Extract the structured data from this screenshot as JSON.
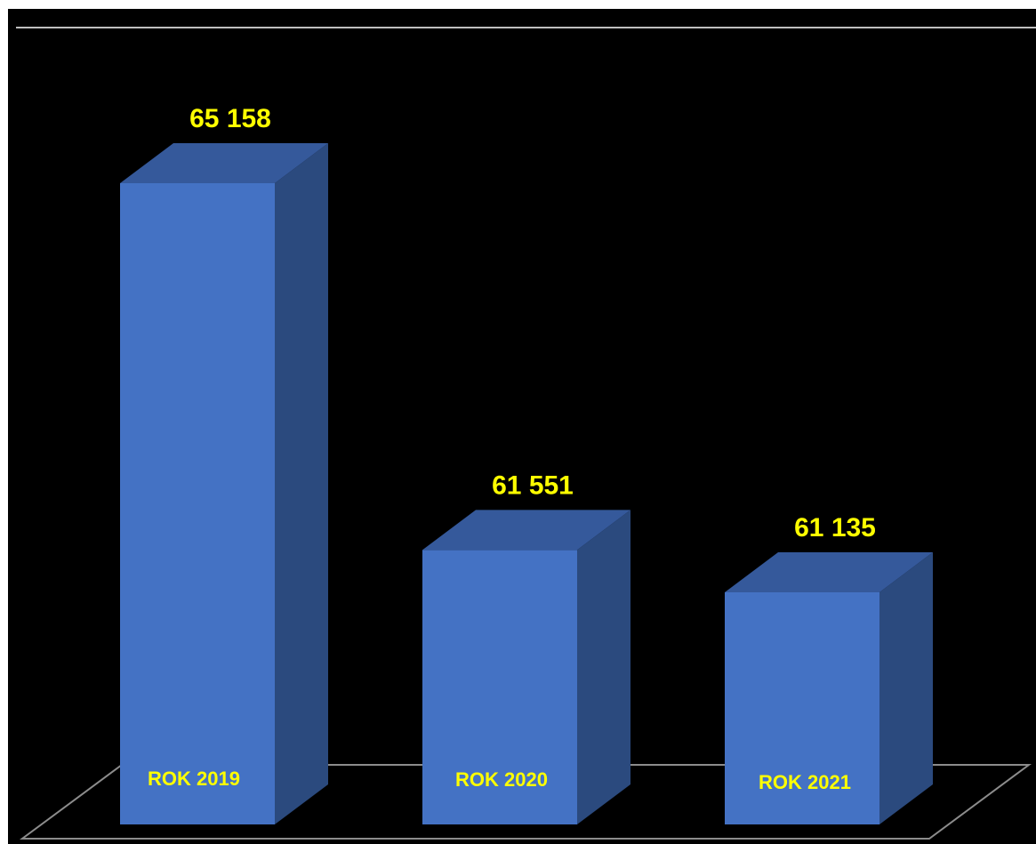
{
  "chart_data": {
    "type": "bar",
    "style": "3d-column",
    "categories": [
      "ROK 2019",
      "ROK 2020",
      "ROK 2021"
    ],
    "values": [
      65158,
      61551,
      61135
    ],
    "value_labels": [
      "65 158",
      "61 551",
      "61 135"
    ],
    "title": "",
    "xlabel": "",
    "ylabel": "",
    "grid": false,
    "legend": "none"
  },
  "colors": {
    "background": "#000000",
    "bar_front": "#4472C4",
    "bar_top": "#35599B",
    "bar_side": "#2B4A7E",
    "label_text": "#FFFF00",
    "floor_line": "#8C8C8C",
    "top_rule": "#FFFFFF"
  }
}
